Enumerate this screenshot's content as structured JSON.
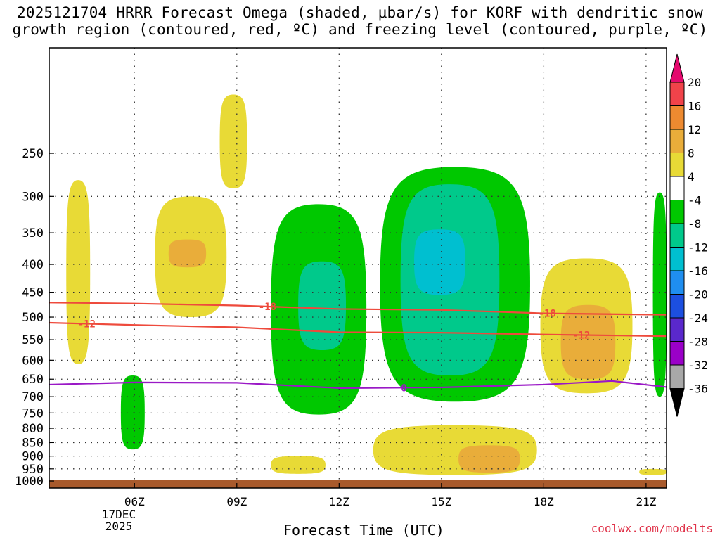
{
  "chart_data": {
    "type": "heatmap",
    "title_line1": "2025121704 HRRR Forecast Omega (shaded, μbar/s) for KORF with dendritic snow",
    "title_line2": "growth region (contoured, red, ºC) and freezing level (contoured, purple, ºC)",
    "xlabel": "Forecast Time (UTC)",
    "credit": "coolwx.com/modelts",
    "date_label": [
      "17DEC",
      "2025"
    ],
    "x_range_hours": [
      3.5,
      21.6
    ],
    "x_ticks": [
      {
        "hour": 6,
        "label": "06Z"
      },
      {
        "hour": 9,
        "label": "09Z"
      },
      {
        "hour": 12,
        "label": "12Z"
      },
      {
        "hour": 15,
        "label": "15Z"
      },
      {
        "hour": 18,
        "label": "18Z"
      },
      {
        "hour": 21,
        "label": "21Z"
      }
    ],
    "y_axis": "pressure (hPa)",
    "y_range_hpa": [
      1030,
      160
    ],
    "y_ticks": [
      250,
      300,
      350,
      400,
      450,
      500,
      550,
      600,
      650,
      700,
      750,
      800,
      850,
      900,
      950,
      1000
    ],
    "colorbar": {
      "levels": [
        -36,
        -32,
        -28,
        -24,
        -20,
        -16,
        -12,
        -8,
        -4,
        4,
        8,
        12,
        16,
        20
      ],
      "labels": [
        "20",
        "16",
        "12",
        "8",
        "4",
        "-4",
        "-8",
        "-12",
        "-16",
        "-20",
        "-24",
        "-28",
        "-32",
        "-36"
      ],
      "colors": [
        "#e40a6e",
        "#f1434a",
        "#ed8a30",
        "#e9ad3a",
        "#e8da36",
        "#ffffff",
        "#00c800",
        "#00c98b",
        "#00bfd0",
        "#1f8ef0",
        "#1c4fe0",
        "#5a28cc",
        "#9a00c8",
        "#a8a8a8",
        "#000000"
      ]
    },
    "omega_regions": [
      {
        "name": "green-main-a",
        "level": -4,
        "hpa_top": 310,
        "hpa_bottom": 755,
        "hour_start": 10.0,
        "hour_end": 12.8
      },
      {
        "name": "green-main-b",
        "level": -4,
        "hpa_top": 265,
        "hpa_bottom": 715,
        "hour_start": 13.2,
        "hour_end": 17.6
      },
      {
        "name": "teal-a",
        "level": -8,
        "hpa_top": 395,
        "hpa_bottom": 575,
        "hour_start": 10.8,
        "hour_end": 12.2
      },
      {
        "name": "teal-b",
        "level": -8,
        "hpa_top": 285,
        "hpa_bottom": 640,
        "hour_start": 13.8,
        "hour_end": 16.7
      },
      {
        "name": "cyan-b",
        "level": -12,
        "hpa_top": 345,
        "hpa_bottom": 455,
        "hour_start": 14.2,
        "hour_end": 15.7
      },
      {
        "name": "green-left",
        "level": -4,
        "hpa_top": 640,
        "hpa_bottom": 875,
        "hour_start": 5.6,
        "hour_end": 6.3
      },
      {
        "name": "green-right-edge",
        "level": -4,
        "hpa_top": 295,
        "hpa_bottom": 700,
        "hour_start": 21.2,
        "hour_end": 21.6
      },
      {
        "name": "yellow-upper-left",
        "level": 4,
        "hpa_top": 280,
        "hpa_bottom": 610,
        "hour_start": 4.0,
        "hour_end": 4.7
      },
      {
        "name": "yellow-top-09z",
        "level": 4,
        "hpa_top": 195,
        "hpa_bottom": 290,
        "hour_start": 8.5,
        "hour_end": 9.3
      },
      {
        "name": "yellow-07z",
        "level": 4,
        "hpa_top": 300,
        "hpa_bottom": 500,
        "hour_start": 6.6,
        "hour_end": 8.7
      },
      {
        "name": "orange-07z",
        "level": 8,
        "hpa_top": 360,
        "hpa_bottom": 405,
        "hour_start": 7.0,
        "hour_end": 8.1
      },
      {
        "name": "yellow-19z",
        "level": 4,
        "hpa_top": 390,
        "hpa_bottom": 690,
        "hour_start": 17.9,
        "hour_end": 20.6
      },
      {
        "name": "orange-19z",
        "level": 8,
        "hpa_top": 475,
        "hpa_bottom": 650,
        "hour_start": 18.5,
        "hour_end": 20.1
      },
      {
        "name": "yellow-low-15z",
        "level": 4,
        "hpa_top": 790,
        "hpa_bottom": 975,
        "hour_start": 13.0,
        "hour_end": 17.8
      },
      {
        "name": "orange-low-16z",
        "level": 8,
        "hpa_top": 860,
        "hpa_bottom": 965,
        "hour_start": 15.5,
        "hour_end": 17.3
      },
      {
        "name": "yellow-low-11z",
        "level": 4,
        "hpa_top": 900,
        "hpa_bottom": 970,
        "hour_start": 10.0,
        "hour_end": 11.6
      },
      {
        "name": "yellow-low-21z",
        "level": 4,
        "hpa_top": 950,
        "hpa_bottom": 975,
        "hour_start": 20.8,
        "hour_end": 21.6
      }
    ],
    "isotherms": [
      {
        "label": "-18",
        "color": "#ee4a3c",
        "label_hour": 9.9,
        "points": [
          [
            3.5,
            470
          ],
          [
            6,
            472
          ],
          [
            9,
            476
          ],
          [
            12,
            483
          ],
          [
            15,
            485
          ],
          [
            18,
            492
          ],
          [
            21.6,
            495
          ]
        ]
      },
      {
        "label": "-12",
        "color": "#ee4a3c",
        "label_hour": 4.6,
        "points": [
          [
            3.5,
            512
          ],
          [
            6,
            517
          ],
          [
            9,
            522
          ],
          [
            12,
            533
          ],
          [
            15,
            534
          ],
          [
            18,
            538
          ],
          [
            21.6,
            542
          ]
        ]
      },
      {
        "label": "-12",
        "color": "#ee4a3c",
        "label_hour": 19.1,
        "points": []
      },
      {
        "label": "-18",
        "color": "#ee4a3c",
        "label_hour": 18.1,
        "points": []
      },
      {
        "label": "0",
        "color": "#9a18c6",
        "label_hour": 13.9,
        "points": [
          [
            3.5,
            665
          ],
          [
            6,
            659
          ],
          [
            9,
            660
          ],
          [
            12,
            675
          ],
          [
            15,
            673
          ],
          [
            18,
            665
          ],
          [
            20,
            655
          ],
          [
            21.6,
            672
          ]
        ]
      }
    ],
    "ground_color": "#a85a2c"
  }
}
